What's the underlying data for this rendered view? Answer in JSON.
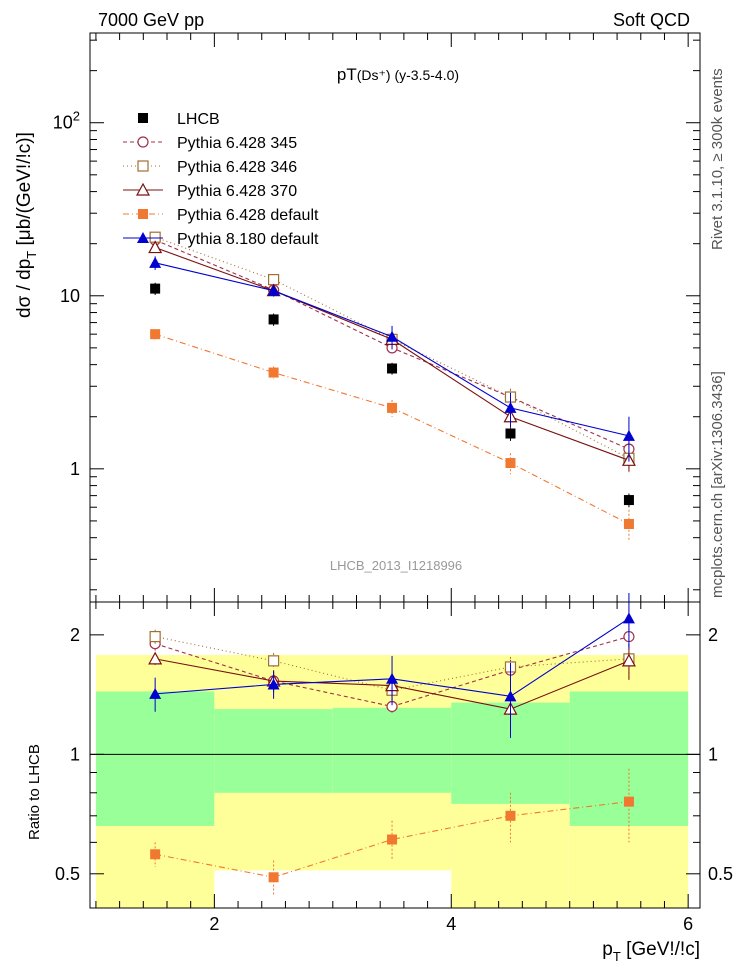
{
  "header": {
    "left": "7000 GeV pp",
    "right": "Soft QCD"
  },
  "side_labels": {
    "rivet": "Rivet 3.1.10, ≥ 300k events",
    "source": "mcplots.cern.ch [arXiv:1306.3436]"
  },
  "chart_data": [
    {
      "type": "line",
      "panel": "main",
      "title_main": "pT",
      "title_sub": "(Ds⁺)",
      "title_rest": " (y-3.5-4.0)",
      "ylabel": "dσ / dp",
      "ylabel_sub": "T",
      "ylabel_unit": " [μb/(GeV!/!c)]",
      "yscale": "log",
      "ylim": [
        0.17,
        330
      ],
      "xlim": [
        0.95,
        6.1
      ],
      "yticks": [
        {
          "v": 1,
          "label": "1"
        },
        {
          "v": 10,
          "label": "10"
        },
        {
          "v": 100,
          "label": "10",
          "sup": "2"
        }
      ],
      "watermark": "LHCB_2013_I1218996",
      "x": [
        1.5,
        2.5,
        3.5,
        4.5,
        5.5
      ],
      "series": [
        {
          "name": "LHCB",
          "color": "#000000",
          "marker": "square-filled",
          "dash": "none",
          "values": [
            11.0,
            7.3,
            3.8,
            1.6,
            0.66
          ],
          "err": [
            0.9,
            0.6,
            0.3,
            0.15,
            0.06
          ]
        },
        {
          "name": "Pythia 6.428 345",
          "color": "#a0304a",
          "marker": "circle-open",
          "dash": "4,3",
          "values": [
            21.0,
            10.8,
            5.0,
            2.6,
            1.3
          ],
          "err": [
            1.2,
            0.7,
            0.4,
            0.3,
            0.2
          ]
        },
        {
          "name": "Pythia 6.428 346",
          "color": "#a07030",
          "marker": "square-open",
          "dash": "1,3",
          "values": [
            21.8,
            12.4,
            5.6,
            2.6,
            1.15
          ],
          "err": [
            1.2,
            0.8,
            0.4,
            0.3,
            0.2
          ]
        },
        {
          "name": "Pythia 6.428 370",
          "color": "#7a1010",
          "marker": "triangle-open",
          "dash": "none",
          "values": [
            19.0,
            10.7,
            5.6,
            2.0,
            1.12
          ],
          "err": [
            1.0,
            0.8,
            0.5,
            0.3,
            0.15
          ]
        },
        {
          "name": "Pythia 6.428 default",
          "color": "#f07830",
          "marker": "square-filled",
          "dash": "6,3,1,3",
          "values": [
            6.0,
            3.6,
            2.25,
            1.08,
            0.48
          ],
          "err": [
            0.4,
            0.3,
            0.25,
            0.15,
            0.1
          ]
        },
        {
          "name": "Pythia 8.180 default",
          "color": "#0000d0",
          "marker": "triangle-filled",
          "dash": "none",
          "values": [
            15.5,
            10.7,
            5.8,
            2.25,
            1.55
          ],
          "err": [
            1.4,
            0.8,
            0.9,
            0.5,
            0.45
          ]
        }
      ]
    },
    {
      "type": "line",
      "panel": "ratio",
      "ylabel": "Ratio to LHCB",
      "xlabel": "p",
      "xlabel_sub": "T",
      "xlabel_unit": " [GeV!/!c]",
      "yscale": "log",
      "ylim": [
        0.41,
        2.42
      ],
      "xlim": [
        0.95,
        6.1
      ],
      "yticks": [
        {
          "v": 0.5,
          "label": "0.5"
        },
        {
          "v": 1,
          "label": "1"
        },
        {
          "v": 2,
          "label": "2"
        }
      ],
      "xticks": [
        {
          "v": 2,
          "label": "2"
        },
        {
          "v": 4,
          "label": "4"
        },
        {
          "v": 6,
          "label": "6"
        }
      ],
      "bands": [
        {
          "x0": 1,
          "x1": 2,
          "yellow": [
            0.36,
            1.78
          ],
          "green": [
            0.66,
            1.44
          ]
        },
        {
          "x0": 2,
          "x1": 3,
          "yellow": [
            0.51,
            1.78
          ],
          "green": [
            0.8,
            1.3
          ]
        },
        {
          "x0": 3,
          "x1": 4,
          "yellow": [
            0.51,
            1.78
          ],
          "green": [
            0.8,
            1.31
          ]
        },
        {
          "x0": 4,
          "x1": 5,
          "yellow": [
            0.37,
            1.78
          ],
          "green": [
            0.75,
            1.35
          ]
        },
        {
          "x0": 5,
          "x1": 6,
          "yellow": [
            0.36,
            1.78
          ],
          "green": [
            0.66,
            1.44
          ]
        }
      ],
      "x": [
        1.5,
        2.5,
        3.5,
        4.5,
        5.5
      ],
      "series": [
        {
          "name": "Pythia 6.428 345",
          "color": "#a0304a",
          "marker": "circle-open",
          "dash": "4,3",
          "values": [
            1.9,
            1.53,
            1.32,
            1.63,
            1.98
          ],
          "err": [
            0.08,
            0.08,
            0.06,
            0.1,
            0.2
          ]
        },
        {
          "name": "Pythia 6.428 346",
          "color": "#a07030",
          "marker": "square-open",
          "dash": "1,3",
          "values": [
            1.98,
            1.72,
            1.45,
            1.66,
            1.74
          ],
          "err": [
            0.08,
            0.08,
            0.08,
            0.1,
            0.2
          ]
        },
        {
          "name": "Pythia 6.428 370",
          "color": "#7a1010",
          "marker": "triangle-open",
          "dash": "none",
          "values": [
            1.74,
            1.53,
            1.49,
            1.3,
            1.72
          ],
          "err": [
            0.06,
            0.1,
            0.12,
            0.15,
            0.18
          ]
        },
        {
          "name": "Pythia 6.428 default",
          "color": "#f07830",
          "marker": "square-filled",
          "dash": "6,3,1,3",
          "values": [
            0.56,
            0.49,
            0.61,
            0.7,
            0.76
          ],
          "err": [
            0.04,
            0.05,
            0.07,
            0.1,
            0.16
          ]
        },
        {
          "name": "Pythia 8.180 default",
          "color": "#0000d0",
          "marker": "triangle-filled",
          "dash": "none",
          "values": [
            1.42,
            1.5,
            1.55,
            1.4,
            2.2
          ],
          "err": [
            0.14,
            0.12,
            0.22,
            0.3,
            0.35
          ]
        }
      ]
    }
  ]
}
